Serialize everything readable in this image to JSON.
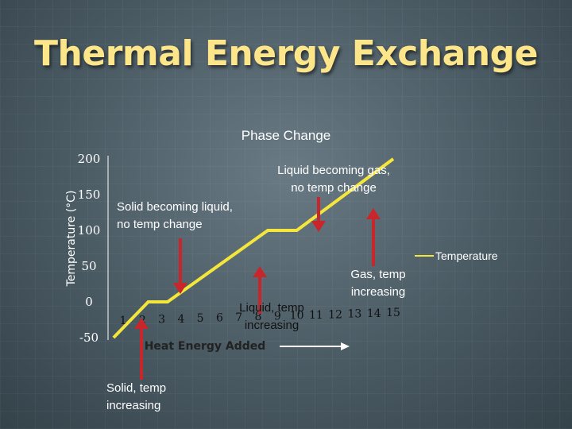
{
  "slide": {
    "title": "Thermal Energy Exchange"
  },
  "colors": {
    "line": "#f5e63b",
    "arrow": "#c8262b",
    "text": "#ffffff",
    "title": "#fde58a",
    "axis": "#ffffff"
  },
  "chart_data": {
    "type": "line",
    "title": "Phase Change",
    "xlabel": "Heat Energy Added",
    "ylabel": "Temperature (°C)",
    "x_ticks": [
      "1",
      "2",
      "3",
      "4",
      "5",
      "6",
      "7",
      "8",
      "9",
      "10",
      "11",
      "12",
      "13",
      "14",
      "15"
    ],
    "y_ticks": [
      "200",
      "150",
      "100",
      "50",
      "0",
      "-50"
    ],
    "ylim": [
      -50,
      200
    ],
    "xlim": [
      1,
      15
    ],
    "legend": "right",
    "series": [
      {
        "name": "Temperature",
        "x": [
          0.5,
          2.3,
          3.3,
          8.5,
          10.0,
          15.0
        ],
        "y": [
          -50,
          0,
          0,
          100,
          100,
          200
        ]
      }
    ],
    "annotations": [
      {
        "id": "solid-temp",
        "text_lines": [
          "Solid, temp",
          "increasing"
        ]
      },
      {
        "id": "solid-liquid",
        "text_lines": [
          "Solid becoming liquid,",
          "no temp change"
        ]
      },
      {
        "id": "liquid-temp",
        "text_lines": [
          "Liquid, temp",
          "increasing"
        ]
      },
      {
        "id": "liquid-gas",
        "text_lines": [
          "Liquid becoming gas,",
          "no temp change"
        ]
      },
      {
        "id": "gas-temp",
        "text_lines": [
          "Gas, temp",
          "increasing"
        ]
      }
    ]
  }
}
